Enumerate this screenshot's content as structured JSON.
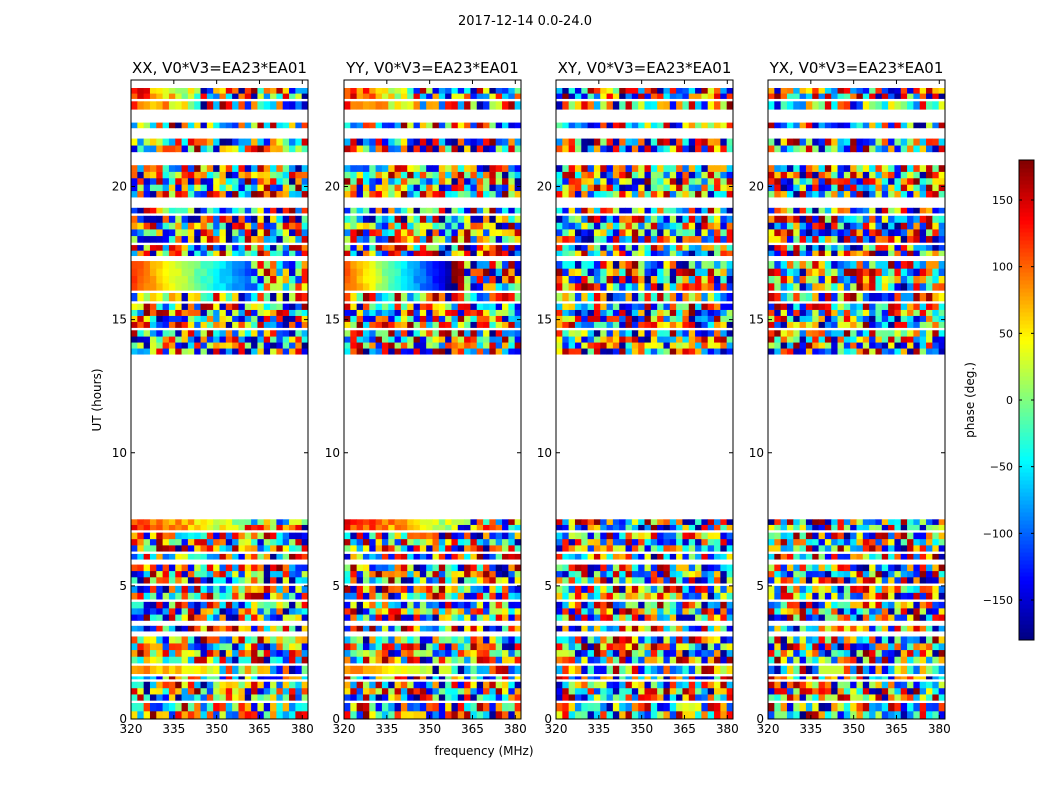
{
  "chart_data": {
    "type": "heatmap",
    "suptitle": "2017-12-14 0.0-24.0",
    "xlabel": "frequency (MHz)",
    "ylabel": "UT (hours)",
    "xlim": [
      320,
      382
    ],
    "ylim": [
      0,
      24
    ],
    "xticks": [
      320,
      335,
      350,
      365,
      380
    ],
    "yticks": [
      0,
      5,
      10,
      15,
      20
    ],
    "panels": [
      {
        "title": "XX, V0*V3=EA23*EA01",
        "pol": "XX"
      },
      {
        "title": "YY, V0*V3=EA23*EA01",
        "pol": "YY"
      },
      {
        "title": "XY, V0*V3=EA23*EA01",
        "pol": "XY"
      },
      {
        "title": "YX, V0*V3=EA23*EA01",
        "pol": "YX"
      }
    ],
    "colorbar": {
      "label": "phase (deg.)",
      "range": [
        -180,
        180
      ],
      "ticks": [
        150,
        100,
        50,
        0,
        -50,
        -100,
        -150
      ],
      "colormap": "jet"
    },
    "data_gaps_hours": [
      [
        7.5,
        13.7
      ]
    ]
  },
  "colors": {
    "axis": "#000000",
    "background": "#ffffff"
  }
}
